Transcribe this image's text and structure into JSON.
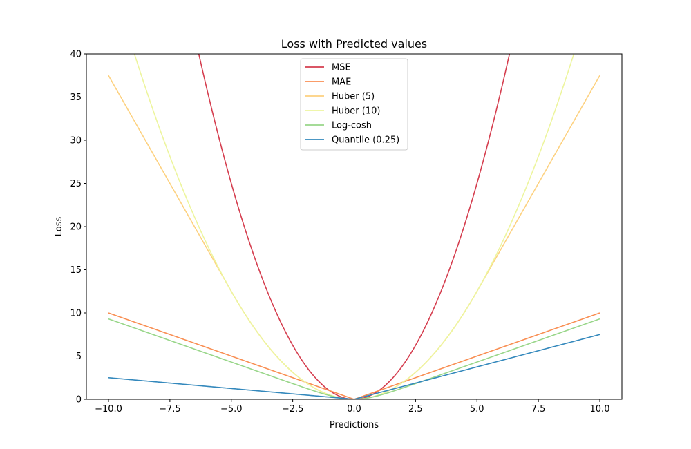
{
  "chart_data": {
    "type": "line",
    "title": "Loss with Predicted values",
    "xlabel": "Predictions",
    "ylabel": "Loss",
    "xlim": [
      -10.9,
      10.9
    ],
    "ylim": [
      0,
      40
    ],
    "x_domain": [
      -10,
      10
    ],
    "x_ticks": [
      -10.0,
      -7.5,
      -5.0,
      -2.5,
      0.0,
      2.5,
      5.0,
      7.5,
      10.0
    ],
    "x_tick_labels": [
      "−10.0",
      "−7.5",
      "−5.0",
      "−2.5",
      "0.0",
      "2.5",
      "5.0",
      "7.5",
      "10.0"
    ],
    "y_ticks": [
      0,
      5,
      10,
      15,
      20,
      25,
      30,
      35,
      40
    ],
    "y_tick_labels": [
      "0",
      "5",
      "10",
      "15",
      "20",
      "25",
      "30",
      "35",
      "40"
    ],
    "legend_position": "upper-center",
    "grid": false,
    "series": [
      {
        "name": "MSE",
        "color": "#d53e4f",
        "loss": "mse"
      },
      {
        "name": "MAE",
        "color": "#f98e52",
        "loss": "mae"
      },
      {
        "name": "Huber (5)",
        "color": "#fdd17f",
        "loss": "huber",
        "delta": 5
      },
      {
        "name": "Huber (10)",
        "color": "#edf59e",
        "loss": "huber",
        "delta": 10
      },
      {
        "name": "Log-cosh",
        "color": "#98d689",
        "loss": "logcosh"
      },
      {
        "name": "Quantile (0.25)",
        "color": "#3388bc",
        "loss": "quantile",
        "q": 0.25
      }
    ]
  }
}
